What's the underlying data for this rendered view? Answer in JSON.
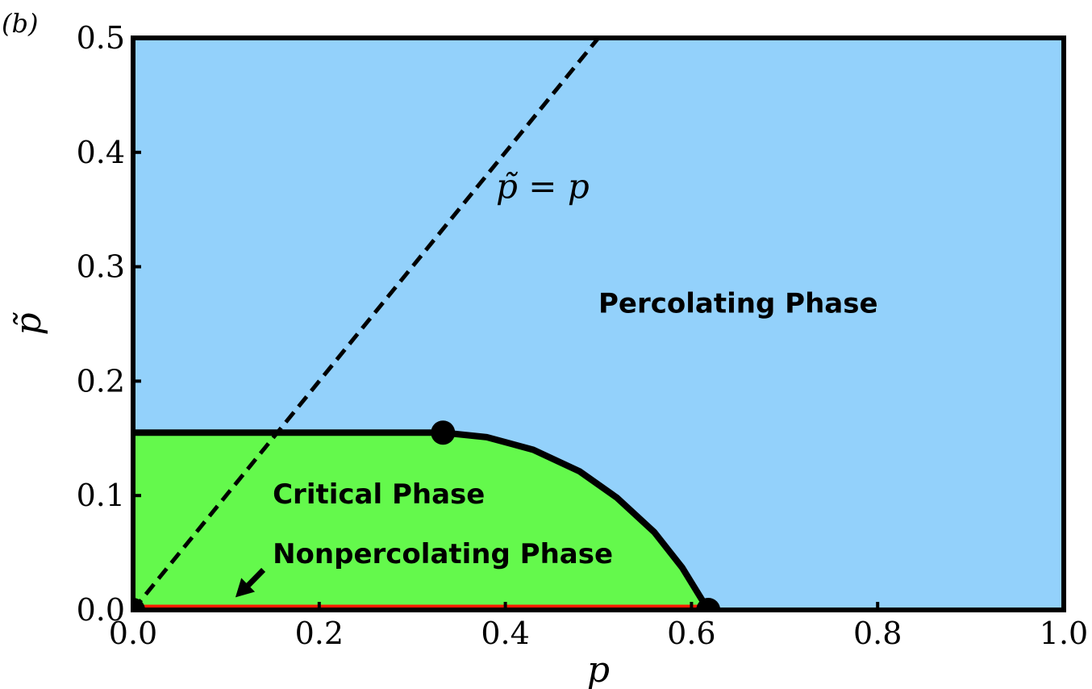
{
  "chart_data": {
    "type": "area",
    "panel_label": "(b)",
    "xlabel": "p",
    "ylabel": "p̃",
    "xlim": [
      0.0,
      1.0
    ],
    "ylim": [
      0.0,
      0.5
    ],
    "xticks": [
      "0.0",
      "0.2",
      "0.4",
      "0.6",
      "0.8",
      "1.0"
    ],
    "yticks": [
      "0.0",
      "0.1",
      "0.2",
      "0.3",
      "0.4",
      "0.5"
    ],
    "grid": false,
    "background_color": "#93d1fb",
    "critical_color": "#64f94c",
    "nonpercolating_color": "#ff1a00",
    "regions": {
      "percolating": {
        "label": "Percolating Phase",
        "anchor": {
          "x": 0.5,
          "y": 0.26
        }
      },
      "critical": {
        "label": "Critical Phase",
        "anchor": {
          "x": 0.15,
          "y": 0.093
        }
      },
      "nonpercolating": {
        "label": "Nonpercolating Phase",
        "anchor": {
          "x": 0.15,
          "y": 0.041
        }
      }
    },
    "critical_boundary": {
      "flat_y": 0.155,
      "flat_x": [
        0.0,
        0.333
      ],
      "curve": [
        {
          "x": 0.333,
          "y": 0.155
        },
        {
          "x": 0.38,
          "y": 0.151
        },
        {
          "x": 0.43,
          "y": 0.14
        },
        {
          "x": 0.48,
          "y": 0.121
        },
        {
          "x": 0.52,
          "y": 0.098
        },
        {
          "x": 0.56,
          "y": 0.068
        },
        {
          "x": 0.59,
          "y": 0.037
        },
        {
          "x": 0.618,
          "y": 0.0
        }
      ]
    },
    "special_points": [
      {
        "x": 0.0,
        "y": 0.0
      },
      {
        "x": 0.333,
        "y": 0.155
      },
      {
        "x": 0.618,
        "y": 0.0
      }
    ],
    "nonpercolating_segment": {
      "x": [
        0.0,
        0.618
      ],
      "y": 0.0
    },
    "diagonal": {
      "label": "p̃ = p",
      "x": [
        0.0,
        0.5
      ],
      "y": [
        0.0,
        0.5
      ],
      "label_anchor": {
        "x": 0.39,
        "y": 0.36
      }
    },
    "arrow": {
      "from": {
        "x": 0.14,
        "y": 0.035
      },
      "to": {
        "x": 0.11,
        "y": 0.011
      }
    }
  }
}
